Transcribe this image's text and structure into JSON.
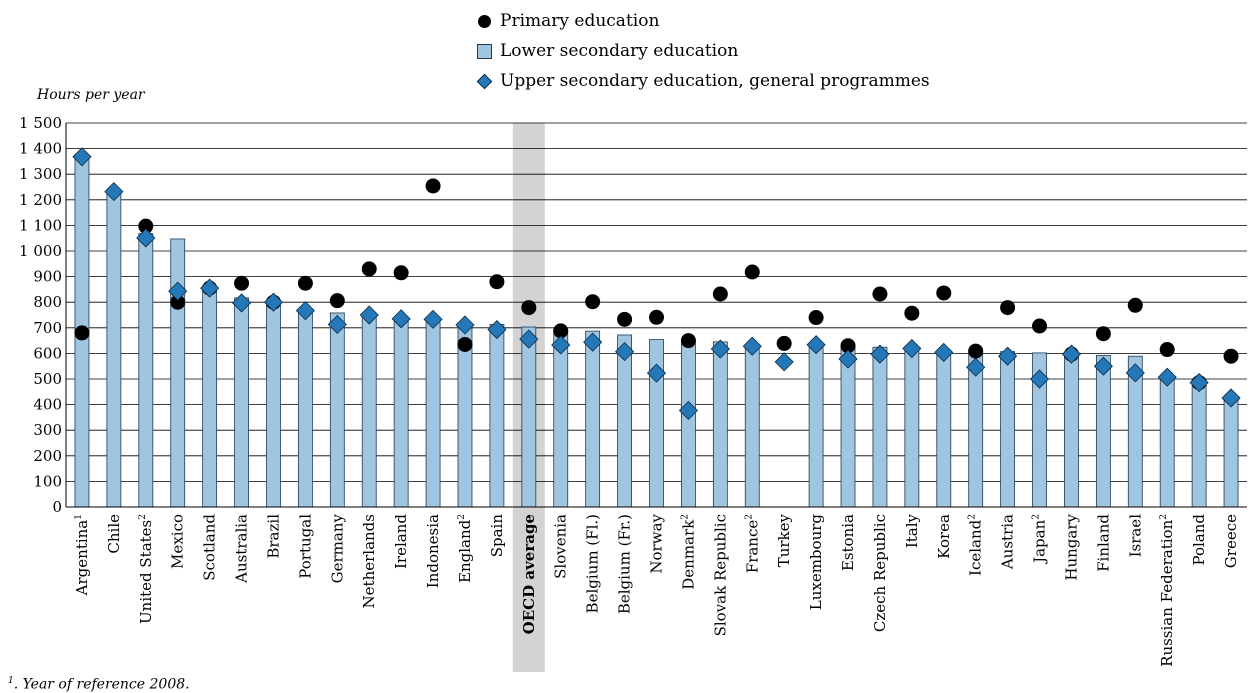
{
  "legend": {
    "primary": "Primary education",
    "lower": "Lower secondary education",
    "upper": "Upper secondary education, general programmes"
  },
  "footnote": {
    "number": "1",
    "text": ". Year of reference 2008."
  },
  "colors": {
    "bar_fill": "#9fc5e0",
    "bar_stroke": "#1f3a55",
    "diamond_fill": "#2478b7",
    "circle_fill": "#000000",
    "highlight": "#d3d3d3"
  },
  "chart_data": {
    "type": "bar",
    "ylabel": "Hours per year",
    "ylim": [
      0,
      1500
    ],
    "yticks": [
      0,
      100,
      200,
      300,
      400,
      500,
      600,
      700,
      800,
      900,
      1000,
      1100,
      1200,
      1300,
      1400,
      1500
    ],
    "ytick_labels": [
      "0",
      "100",
      "200",
      "300",
      "400",
      "500",
      "600",
      "700",
      "800",
      "900",
      "1 000",
      "1 100",
      "1 200",
      "1 300",
      "1 400",
      "1 500"
    ],
    "grid": true,
    "highlight_category": "OECD average",
    "categories": [
      {
        "name": "Argentina",
        "note": "1"
      },
      {
        "name": "Chile",
        "note": ""
      },
      {
        "name": "United States",
        "note": "2"
      },
      {
        "name": "Mexico",
        "note": ""
      },
      {
        "name": "Scotland",
        "note": ""
      },
      {
        "name": "Australia",
        "note": ""
      },
      {
        "name": "Brazil",
        "note": ""
      },
      {
        "name": "Portugal",
        "note": ""
      },
      {
        "name": "Germany",
        "note": ""
      },
      {
        "name": "Netherlands",
        "note": ""
      },
      {
        "name": "Ireland",
        "note": ""
      },
      {
        "name": "Indonesia",
        "note": ""
      },
      {
        "name": "England",
        "note": "2"
      },
      {
        "name": "Spain",
        "note": ""
      },
      {
        "name": "OECD average",
        "note": ""
      },
      {
        "name": "Slovenia",
        "note": ""
      },
      {
        "name": "Belgium (Fl.)",
        "note": ""
      },
      {
        "name": "Belgium (Fr.)",
        "note": ""
      },
      {
        "name": "Norway",
        "note": ""
      },
      {
        "name": "Denmark",
        "note": "2"
      },
      {
        "name": "Slovak Republic",
        "note": ""
      },
      {
        "name": "France",
        "note": "2"
      },
      {
        "name": "Turkey",
        "note": ""
      },
      {
        "name": "Luxembourg",
        "note": ""
      },
      {
        "name": "Estonia",
        "note": ""
      },
      {
        "name": "Czech Republic",
        "note": ""
      },
      {
        "name": "Italy",
        "note": ""
      },
      {
        "name": "Korea",
        "note": ""
      },
      {
        "name": "Iceland",
        "note": "2"
      },
      {
        "name": "Austria",
        "note": ""
      },
      {
        "name": "Japan",
        "note": "2"
      },
      {
        "name": "Hungary",
        "note": ""
      },
      {
        "name": "Finland",
        "note": ""
      },
      {
        "name": "Israel",
        "note": ""
      },
      {
        "name": "Russian Federation",
        "note": "2"
      },
      {
        "name": "Poland",
        "note": ""
      },
      {
        "name": "Greece",
        "note": ""
      }
    ],
    "series": [
      {
        "name": "Primary education",
        "type": "circle",
        "values": [
          680,
          null,
          1097,
          800,
          855,
          874,
          800,
          874,
          806,
          930,
          915,
          1254,
          635,
          880,
          779,
          688,
          802,
          733,
          741,
          650,
          832,
          918,
          639,
          740,
          630,
          832,
          757,
          836,
          609,
          779,
          707,
          597,
          677,
          788,
          615,
          486,
          589
        ]
      },
      {
        "name": "Lower secondary education",
        "type": "bar",
        "values": [
          1368,
          1232,
          1068,
          1047,
          855,
          817,
          800,
          774,
          758,
          750,
          735,
          738,
          714,
          713,
          703,
          690,
          687,
          672,
          654,
          650,
          645,
          631,
          null,
          634,
          630,
          624,
          619,
          612,
          609,
          607,
          602,
          597,
          592,
          589,
          507,
          498,
          429
        ]
      },
      {
        "name": "Upper secondary education, general programmes",
        "type": "diamond",
        "values": [
          1368,
          1232,
          1051,
          843,
          855,
          797,
          800,
          767,
          713,
          750,
          735,
          733,
          711,
          693,
          656,
          633,
          644,
          607,
          523,
          377,
          617,
          628,
          567,
          634,
          578,
          597,
          619,
          604,
          546,
          589,
          500,
          597,
          550,
          524,
          507,
          486,
          426
        ]
      }
    ]
  }
}
